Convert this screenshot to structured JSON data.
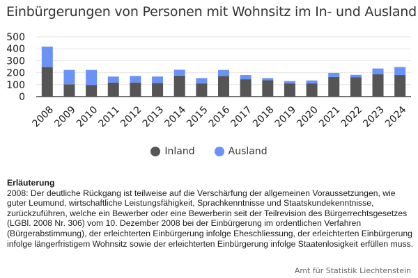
{
  "title": "Einbürgerungen von Personen mit Wohnsitz im In- und Ausland",
  "chart_data": {
    "type": "bar",
    "stacked": true,
    "categories": [
      "2008",
      "2009",
      "2010",
      "2011",
      "2012",
      "2013",
      "2014",
      "2015",
      "2016",
      "2017",
      "2018",
      "2019",
      "2020",
      "2021",
      "2022",
      "2023",
      "2024"
    ],
    "series": [
      {
        "name": "Inland",
        "color": "#555555",
        "values": [
          248,
          103,
          98,
          118,
          118,
          113,
          175,
          110,
          173,
          145,
          137,
          110,
          110,
          163,
          162,
          188,
          180
        ]
      },
      {
        "name": "Ausland",
        "color": "#6b93f7",
        "values": [
          170,
          120,
          125,
          50,
          55,
          55,
          50,
          45,
          50,
          35,
          18,
          20,
          25,
          35,
          20,
          47,
          68
        ]
      }
    ],
    "ylim": [
      0,
      500
    ],
    "yticks": [
      0,
      100,
      200,
      300,
      400,
      500
    ],
    "grid": true,
    "legend_position": "bottom"
  },
  "legend": {
    "inland": "Inland",
    "ausland": "Ausland"
  },
  "note": {
    "heading": "Erläuterung",
    "text": "2008: Der deutliche Rückgang ist teilweise auf die Verschärfung der allgemeinen Voraussetzungen, wie guter Leumund, wirtschaftliche Leistungsfähigkeit, Sprachkenntnisse und Staatskundekenntnisse, zurückzuführen, welche ein Bewerber oder eine Bewerberin seit der Teilrevision des Bürgerrechtsgesetzes (LGBl. 2008 Nr. 306) vom 10. Dezember 2008 bei der Einbürgerung im ordentlichen Verfahren (Bürgerabstimmung), der erleichterten Einbürgerung infolge Eheschliessung, der erleichterten Einbürgerung infolge längerfristigem Wohnsitz sowie der erleichterten Einbürgerung infolge Staatenlosigkeit erfüllen muss."
  },
  "source": "Amt für Statistik Liechtenstein"
}
